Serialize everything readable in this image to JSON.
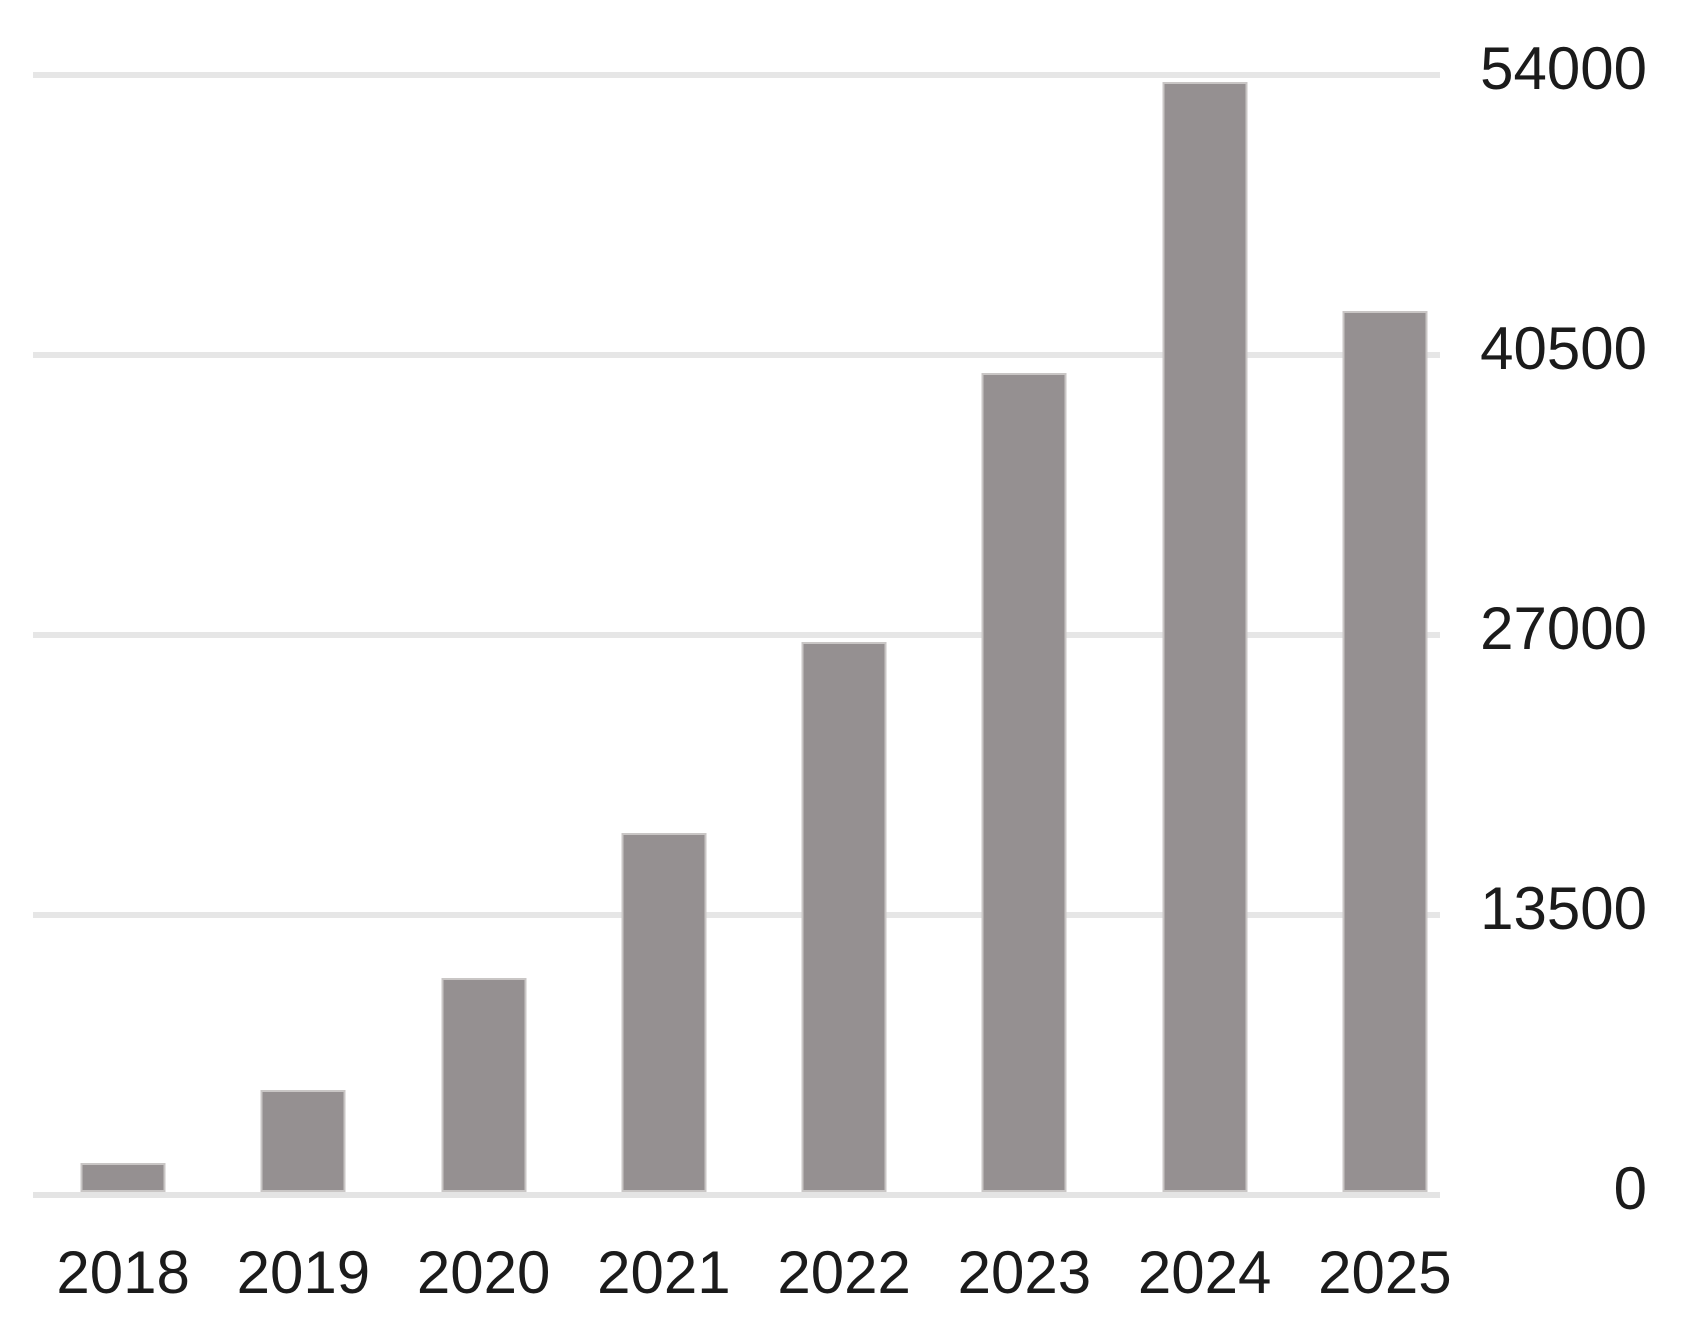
{
  "chart": {
    "background": "#ffffff",
    "text_color": "#1b1b1b",
    "gridline_color": "#e6e6e6",
    "axis_line_color": "#e4e4e4",
    "bar_fill": "#959091",
    "bar_border": "#c9c6c5"
  },
  "chart_data": {
    "type": "bar",
    "categories": [
      "2018",
      "2019",
      "2020",
      "2021",
      "2022",
      "2023",
      "2024",
      "2025"
    ],
    "values": [
      1400,
      4900,
      10300,
      17300,
      26500,
      39500,
      53500,
      42500
    ],
    "title": "",
    "xlabel": "",
    "ylabel": "",
    "ylim": [
      0,
      54000
    ],
    "yticks": [
      0,
      13500,
      27000,
      40500,
      54000
    ],
    "grid": true,
    "legend": "none",
    "y_axis_position": "right",
    "bar_orientation": "vertical"
  }
}
